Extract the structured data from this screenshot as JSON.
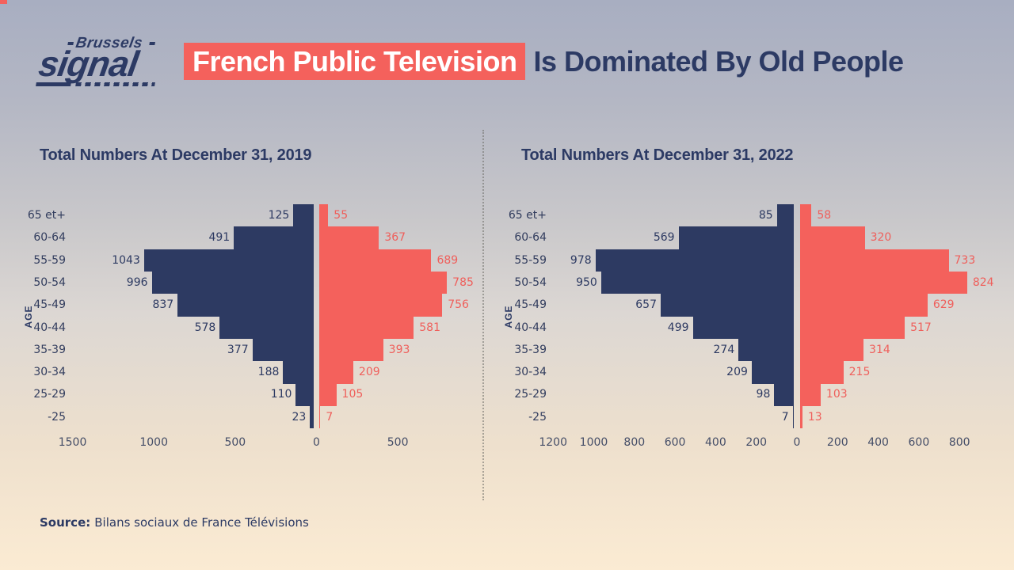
{
  "header": {
    "brand": {
      "top": "Brussels",
      "main": "signal"
    },
    "title_highlight": "French Public Television",
    "title_rest": "Is Dominated By Old People"
  },
  "footer": {
    "source_label": "Source:",
    "source_text": "Bilans sociaux de France Télévisions"
  },
  "colors": {
    "navy": "#2d3a62",
    "salmon": "#f4615c",
    "headline_text": "#ffffff",
    "background_top": "#a8aec1",
    "background_bottom": "#fbebd3"
  },
  "chart_data": [
    {
      "type": "bar",
      "variant": "population-pyramid",
      "title": "Total Numbers At December 31, 2019",
      "ylabel": "AGE",
      "grid": false,
      "legend": false,
      "categories": [
        "65 et+",
        "60-64",
        "55-59",
        "50-54",
        "45-49",
        "40-44",
        "35-39",
        "30-34",
        "25-29",
        "-25"
      ],
      "series": [
        {
          "name": "left-navy",
          "color": "#2d3a62",
          "values": [
            125,
            491,
            1043,
            996,
            837,
            578,
            377,
            188,
            110,
            23
          ]
        },
        {
          "name": "right-salmon",
          "color": "#f4615c",
          "values": [
            55,
            367,
            689,
            785,
            756,
            581,
            393,
            209,
            105,
            7
          ]
        }
      ],
      "xlim_left": 1500,
      "xlim_right": 800,
      "x_ticks": [
        {
          "label": "1500",
          "value": 1500,
          "side": "left"
        },
        {
          "label": "1000",
          "value": 1000,
          "side": "left"
        },
        {
          "label": "500",
          "value": 500,
          "side": "left"
        },
        {
          "label": "0",
          "value": 0,
          "side": "center"
        },
        {
          "label": "500",
          "value": 500,
          "side": "right"
        }
      ]
    },
    {
      "type": "bar",
      "variant": "population-pyramid",
      "title": "Total Numbers At December 31, 2022",
      "ylabel": "AGE",
      "grid": false,
      "legend": false,
      "categories": [
        "65 et+",
        "60-64",
        "55-59",
        "50-54",
        "45-49",
        "40-44",
        "35-39",
        "30-34",
        "25-29",
        "-25"
      ],
      "series": [
        {
          "name": "left-navy",
          "color": "#2d3a62",
          "values": [
            85,
            569,
            978,
            950,
            657,
            499,
            274,
            209,
            98,
            7
          ]
        },
        {
          "name": "right-salmon",
          "color": "#f4615c",
          "values": [
            58,
            320,
            733,
            824,
            629,
            517,
            314,
            215,
            103,
            13
          ]
        }
      ],
      "xlim_left": 1200,
      "xlim_right": 800,
      "x_ticks": [
        {
          "label": "1200",
          "value": 1200,
          "side": "left"
        },
        {
          "label": "1000",
          "value": 1000,
          "side": "left"
        },
        {
          "label": "800",
          "value": 800,
          "side": "left"
        },
        {
          "label": "600",
          "value": 600,
          "side": "left"
        },
        {
          "label": "400",
          "value": 400,
          "side": "left"
        },
        {
          "label": "200",
          "value": 200,
          "side": "left"
        },
        {
          "label": "0",
          "value": 0,
          "side": "center"
        },
        {
          "label": "200",
          "value": 200,
          "side": "right"
        },
        {
          "label": "400",
          "value": 400,
          "side": "right"
        },
        {
          "label": "600",
          "value": 600,
          "side": "right"
        },
        {
          "label": "800",
          "value": 800,
          "side": "right"
        }
      ]
    }
  ]
}
